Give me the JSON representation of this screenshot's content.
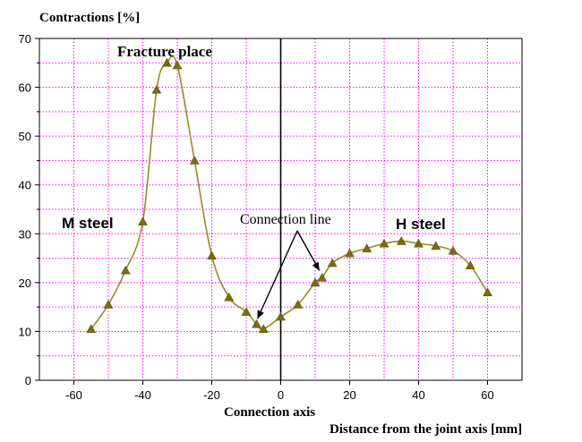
{
  "chart_data": {
    "type": "line",
    "ylabel": "Contractions [%]",
    "xlabel": "Distance from the joint axis [mm]",
    "axis_note": "Connection axis",
    "xlim": [
      -70,
      70
    ],
    "ylim": [
      0,
      70
    ],
    "x_ticks": [
      -60,
      -40,
      -20,
      0,
      20,
      40,
      60
    ],
    "y_ticks": [
      0,
      10,
      20,
      30,
      40,
      50,
      60,
      70
    ],
    "grid": true,
    "grid_color": "#ff00ff",
    "line_color": "#9b8a2a",
    "marker_color": "#7a6a12",
    "series": [
      {
        "x": [
          -55,
          -50,
          -45,
          -40,
          -36,
          -33,
          -30,
          -25,
          -20,
          -15,
          -10,
          -7,
          -5,
          0,
          5,
          10,
          12,
          15,
          20,
          25,
          30,
          35,
          40,
          45,
          50,
          55,
          60
        ],
        "y": [
          10.5,
          15.5,
          22.5,
          32.5,
          59.5,
          65,
          64.5,
          45,
          25.5,
          17,
          14,
          11.5,
          10.5,
          13,
          15.5,
          20,
          21,
          24,
          26,
          27,
          28,
          28.5,
          28,
          27.5,
          26.5,
          23.5,
          18
        ]
      }
    ],
    "annotations": [
      {
        "text": "Fracture place"
      },
      {
        "text": "M steel"
      },
      {
        "text": "H steel"
      },
      {
        "text": "Connection line"
      }
    ]
  }
}
